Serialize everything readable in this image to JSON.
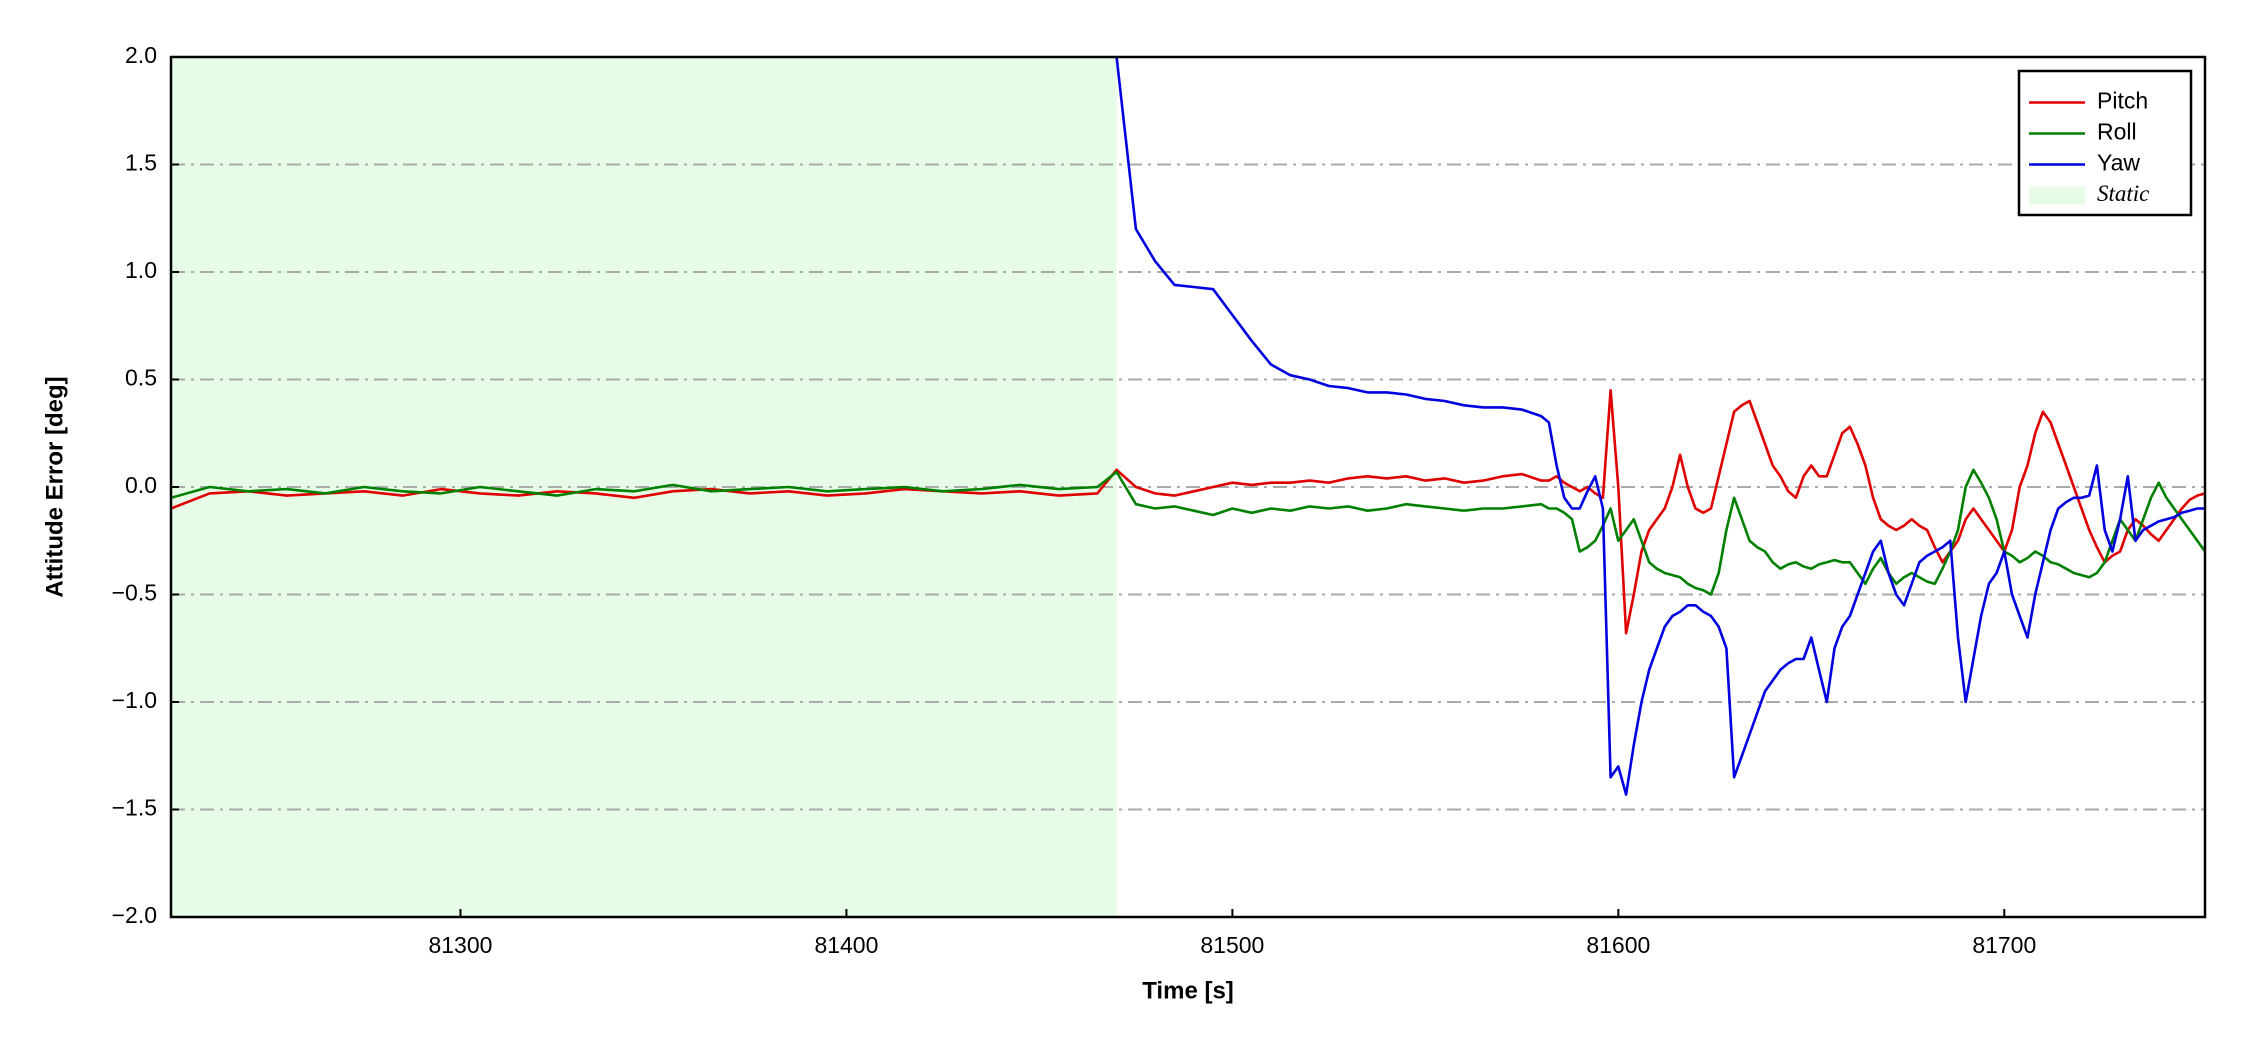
{
  "chart_data": {
    "type": "line",
    "xlabel": "Time [s]",
    "ylabel": "Attitude Error [deg]",
    "xlim": [
      81225,
      81752
    ],
    "ylim": [
      -2,
      2
    ],
    "xticks": [
      81300,
      81400,
      81500,
      81600,
      81700
    ],
    "yticks": [
      {
        "value": -2,
        "label": "−2.0"
      },
      {
        "value": -1.5,
        "label": "−1.5"
      },
      {
        "value": -1,
        "label": "−1.0"
      },
      {
        "value": -0.5,
        "label": "−0.5"
      },
      {
        "value": 0,
        "label": "0.0"
      },
      {
        "value": 0.5,
        "label": "0.5"
      },
      {
        "value": 1,
        "label": "1.0"
      },
      {
        "value": 1.5,
        "label": "1.5"
      },
      {
        "value": 2,
        "label": "2.0"
      }
    ],
    "grid": true,
    "legend": "upper right",
    "static_region": {
      "name": "Static",
      "color": "#e6fce6",
      "span": [
        81225,
        81470
      ]
    },
    "x": [
      81225,
      81235,
      81245,
      81255,
      81265,
      81275,
      81285,
      81295,
      81305,
      81315,
      81325,
      81335,
      81345,
      81355,
      81365,
      81375,
      81385,
      81395,
      81405,
      81415,
      81425,
      81435,
      81445,
      81455,
      81465,
      81470,
      81475,
      81480,
      81485,
      81490,
      81495,
      81500,
      81505,
      81510,
      81515,
      81520,
      81525,
      81530,
      81535,
      81540,
      81545,
      81550,
      81555,
      81560,
      81565,
      81570,
      81575,
      81580,
      81582,
      81584,
      81586,
      81588,
      81590,
      81592,
      81594,
      81596,
      81598,
      81600,
      81602,
      81604,
      81606,
      81608,
      81610,
      81612,
      81614,
      81616,
      81618,
      81620,
      81622,
      81624,
      81626,
      81628,
      81630,
      81632,
      81634,
      81636,
      81638,
      81640,
      81642,
      81644,
      81646,
      81648,
      81650,
      81652,
      81654,
      81656,
      81658,
      81660,
      81662,
      81664,
      81666,
      81668,
      81670,
      81672,
      81674,
      81676,
      81678,
      81680,
      81682,
      81684,
      81686,
      81688,
      81690,
      81692,
      81694,
      81696,
      81698,
      81700,
      81702,
      81704,
      81706,
      81708,
      81710,
      81712,
      81714,
      81716,
      81718,
      81720,
      81722,
      81724,
      81726,
      81728,
      81730,
      81732,
      81734,
      81736,
      81738,
      81740,
      81742,
      81744,
      81746,
      81748,
      81750,
      81752
    ],
    "series": [
      {
        "name": "Pitch",
        "color": "#e00000",
        "values": [
          -0.1,
          -0.03,
          -0.02,
          -0.04,
          -0.03,
          -0.02,
          -0.04,
          -0.01,
          -0.03,
          -0.04,
          -0.02,
          -0.03,
          -0.05,
          -0.02,
          -0.01,
          -0.03,
          -0.02,
          -0.04,
          -0.03,
          -0.01,
          -0.02,
          -0.03,
          -0.02,
          -0.04,
          -0.03,
          0.08,
          0.0,
          -0.03,
          -0.04,
          -0.02,
          0.0,
          0.02,
          0.01,
          0.02,
          0.02,
          0.03,
          0.02,
          0.04,
          0.05,
          0.04,
          0.05,
          0.03,
          0.04,
          0.02,
          0.03,
          0.05,
          0.06,
          0.03,
          0.03,
          0.05,
          0.02,
          0.0,
          -0.02,
          0.0,
          -0.03,
          -0.05,
          0.45,
          0.0,
          -0.68,
          -0.5,
          -0.3,
          -0.2,
          -0.15,
          -0.1,
          0.0,
          0.15,
          0.0,
          -0.1,
          -0.12,
          -0.1,
          0.05,
          0.2,
          0.35,
          0.38,
          0.4,
          0.3,
          0.2,
          0.1,
          0.05,
          -0.02,
          -0.05,
          0.05,
          0.1,
          0.05,
          0.05,
          0.15,
          0.25,
          0.28,
          0.2,
          0.1,
          -0.05,
          -0.15,
          -0.18,
          -0.2,
          -0.18,
          -0.15,
          -0.18,
          -0.2,
          -0.28,
          -0.35,
          -0.3,
          -0.25,
          -0.15,
          -0.1,
          -0.15,
          -0.2,
          -0.25,
          -0.3,
          -0.2,
          0.0,
          0.1,
          0.25,
          0.35,
          0.3,
          0.2,
          0.1,
          0.0,
          -0.1,
          -0.2,
          -0.28,
          -0.35,
          -0.32,
          -0.3,
          -0.2,
          -0.15,
          -0.18,
          -0.22,
          -0.25,
          -0.2,
          -0.15,
          -0.1,
          -0.06,
          -0.04,
          -0.03
        ]
      },
      {
        "name": "Roll",
        "color": "#008000",
        "values": [
          -0.05,
          0.0,
          -0.02,
          -0.01,
          -0.03,
          0.0,
          -0.02,
          -0.03,
          0.0,
          -0.02,
          -0.04,
          -0.01,
          -0.02,
          0.01,
          -0.02,
          -0.01,
          0.0,
          -0.02,
          -0.01,
          0.0,
          -0.02,
          -0.01,
          0.01,
          -0.01,
          0.0,
          0.07,
          -0.08,
          -0.1,
          -0.09,
          -0.11,
          -0.13,
          -0.1,
          -0.12,
          -0.1,
          -0.11,
          -0.09,
          -0.1,
          -0.09,
          -0.11,
          -0.1,
          -0.08,
          -0.09,
          -0.1,
          -0.11,
          -0.1,
          -0.1,
          -0.09,
          -0.08,
          -0.1,
          -0.1,
          -0.12,
          -0.15,
          -0.3,
          -0.28,
          -0.25,
          -0.18,
          -0.1,
          -0.25,
          -0.2,
          -0.15,
          -0.25,
          -0.35,
          -0.38,
          -0.4,
          -0.41,
          -0.42,
          -0.45,
          -0.47,
          -0.48,
          -0.5,
          -0.4,
          -0.2,
          -0.05,
          -0.15,
          -0.25,
          -0.28,
          -0.3,
          -0.35,
          -0.38,
          -0.36,
          -0.35,
          -0.37,
          -0.38,
          -0.36,
          -0.35,
          -0.34,
          -0.35,
          -0.35,
          -0.4,
          -0.45,
          -0.38,
          -0.33,
          -0.4,
          -0.45,
          -0.42,
          -0.4,
          -0.42,
          -0.44,
          -0.45,
          -0.38,
          -0.3,
          -0.2,
          0.0,
          0.08,
          0.02,
          -0.05,
          -0.15,
          -0.3,
          -0.32,
          -0.35,
          -0.33,
          -0.3,
          -0.32,
          -0.35,
          -0.36,
          -0.38,
          -0.4,
          -0.41,
          -0.42,
          -0.4,
          -0.35,
          -0.25,
          -0.15,
          -0.2,
          -0.25,
          -0.15,
          -0.05,
          0.02,
          -0.05,
          -0.1,
          -0.15,
          -0.2,
          -0.25,
          -0.3
        ]
      },
      {
        "name": "Yaw",
        "color": "#0000e0",
        "values": [
          null,
          null,
          null,
          null,
          null,
          null,
          null,
          null,
          null,
          null,
          null,
          null,
          null,
          null,
          null,
          null,
          null,
          null,
          null,
          null,
          null,
          null,
          null,
          null,
          null,
          2.0,
          1.2,
          1.05,
          0.94,
          0.93,
          0.92,
          0.8,
          0.68,
          0.57,
          0.52,
          0.5,
          0.47,
          0.46,
          0.44,
          0.44,
          0.43,
          0.41,
          0.4,
          0.38,
          0.37,
          0.37,
          0.36,
          0.33,
          0.3,
          0.1,
          -0.05,
          -0.1,
          -0.1,
          -0.02,
          0.05,
          -0.1,
          -1.35,
          -1.3,
          -1.43,
          -1.2,
          -1.0,
          -0.85,
          -0.75,
          -0.65,
          -0.6,
          -0.58,
          -0.55,
          -0.55,
          -0.58,
          -0.6,
          -0.65,
          -0.75,
          -1.35,
          -1.25,
          -1.15,
          -1.05,
          -0.95,
          -0.9,
          -0.85,
          -0.82,
          -0.8,
          -0.8,
          -0.7,
          -0.85,
          -1.0,
          -0.75,
          -0.65,
          -0.6,
          -0.5,
          -0.4,
          -0.3,
          -0.25,
          -0.4,
          -0.5,
          -0.55,
          -0.45,
          -0.35,
          -0.32,
          -0.3,
          -0.28,
          -0.25,
          -0.7,
          -1.0,
          -0.8,
          -0.6,
          -0.45,
          -0.4,
          -0.3,
          -0.5,
          -0.6,
          -0.7,
          -0.5,
          -0.35,
          -0.2,
          -0.1,
          -0.07,
          -0.05,
          -0.05,
          -0.04,
          0.1,
          -0.2,
          -0.3,
          -0.15,
          0.05,
          -0.25,
          -0.2,
          -0.18,
          -0.16,
          -0.15,
          -0.14,
          -0.12,
          -0.11,
          -0.1,
          -0.1
        ]
      }
    ]
  }
}
